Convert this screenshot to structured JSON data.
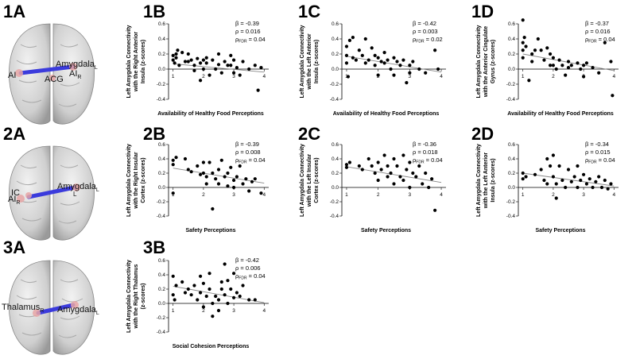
{
  "panels": {
    "p1A": "1A",
    "p1B": "1B",
    "p1C": "1C",
    "p1D": "1D",
    "p2A": "2A",
    "p2B": "2B",
    "p2C": "2C",
    "p2D": "2D",
    "p3A": "3A",
    "p3B": "3B"
  },
  "brains": {
    "b1": {
      "ai_left": "AI",
      "acg": "ACG",
      "amygdala": "Amygdala",
      "amygdala_sub": "L",
      "ai_right": "AI",
      "ai_right_sub": "R"
    },
    "b2": {
      "ic": "IC",
      "ai": "AI",
      "r_sub": "R",
      "amygdala": "Amygdala",
      "amygdala_sub": "L",
      "l_sub": "L"
    },
    "b3": {
      "thalamus": "Thalamus",
      "r_sub": "R",
      "amygdala": "Amygdala",
      "amygdala_sub": "L"
    }
  },
  "colors": {
    "regression_line": "#888888",
    "connection": "#3b3bdc",
    "dots": "#000000"
  },
  "chart_data": [
    {
      "id": "1B",
      "type": "scatter",
      "ylabel_lines": [
        "Left Amygdala Connectivity",
        "with the Right Anterior",
        "Insula (z-scores)"
      ],
      "xlabel": "Availability of Healthy Food Perceptions",
      "stats": {
        "beta": "β = -0.39",
        "rho": "ρ = 0.016",
        "pfdr_value": "= 0.04"
      },
      "yticks": [
        "0.6",
        "0.4",
        "0.2",
        "0.0",
        "-0.2",
        "-0.4"
      ],
      "xticks": [
        "1",
        "2",
        "3",
        "4"
      ],
      "ylim": [
        -0.4,
        0.6
      ],
      "xlim": [
        1,
        4
      ],
      "zero_y": 0.0,
      "line": [
        [
          1,
          0.07
        ],
        [
          4,
          -0.04
        ]
      ],
      "points": [
        [
          1,
          0.18
        ],
        [
          1,
          0.12
        ],
        [
          1.05,
          0.08
        ],
        [
          1.1,
          0.2
        ],
        [
          1.1,
          0.15
        ],
        [
          1.15,
          0.25
        ],
        [
          1.2,
          0.05
        ],
        [
          1.3,
          0.22
        ],
        [
          1.4,
          0.1
        ],
        [
          1.5,
          0.2
        ],
        [
          1.5,
          0.1
        ],
        [
          1.6,
          0.12
        ],
        [
          1.7,
          0.05
        ],
        [
          1.7,
          -0.02
        ],
        [
          1.8,
          0.14
        ],
        [
          1.9,
          0.08
        ],
        [
          1.9,
          -0.15
        ],
        [
          2.0,
          0.0
        ],
        [
          2.0,
          0.12
        ],
        [
          2.1,
          0.15
        ],
        [
          2.1,
          0.08
        ],
        [
          2.2,
          -0.08
        ],
        [
          2.3,
          0.12
        ],
        [
          2.4,
          0.0
        ],
        [
          2.5,
          0.2
        ],
        [
          2.5,
          0.06
        ],
        [
          2.6,
          -0.05
        ],
        [
          2.7,
          0.1
        ],
        [
          2.8,
          0.05
        ],
        [
          2.9,
          0.18
        ],
        [
          2.9,
          0.05
        ],
        [
          3.0,
          -0.05
        ],
        [
          3.0,
          0.12
        ],
        [
          3.1,
          0.02
        ],
        [
          3.2,
          -0.08
        ],
        [
          3.3,
          0.1
        ],
        [
          3.5,
          0.0
        ],
        [
          3.7,
          0.05
        ],
        [
          3.8,
          -0.28
        ],
        [
          3.9,
          0.02
        ]
      ]
    },
    {
      "id": "1C",
      "type": "scatter",
      "ylabel_lines": [
        "Left Amygdala Connectivity",
        "with the Left Anterior",
        "Insula (z-scores)"
      ],
      "xlabel": "Availability of Healthy Food Perceptions",
      "stats": {
        "beta": "β = -0.42",
        "rho": "ρ = 0.003",
        "pfdr_value": "= 0.02"
      },
      "yticks": [
        "0.6",
        "0.4",
        "0.2",
        "0.0",
        "-0.2",
        "-0.4"
      ],
      "xticks": [
        "1",
        "2",
        "3",
        "4"
      ],
      "ylim": [
        -0.4,
        0.6
      ],
      "xlim": [
        1,
        4
      ],
      "zero_y": 0.0,
      "line": [
        [
          1,
          0.17
        ],
        [
          4,
          -0.04
        ]
      ],
      "points": [
        [
          1,
          0.3
        ],
        [
          1,
          0.18
        ],
        [
          1,
          0.08
        ],
        [
          1.05,
          -0.1
        ],
        [
          1.1,
          0.38
        ],
        [
          1.2,
          0.42
        ],
        [
          1.2,
          0.15
        ],
        [
          1.3,
          0.12
        ],
        [
          1.4,
          0.25
        ],
        [
          1.5,
          0.18
        ],
        [
          1.6,
          0.08
        ],
        [
          1.6,
          0.4
        ],
        [
          1.7,
          0.12
        ],
        [
          1.8,
          0.28
        ],
        [
          1.9,
          0.18
        ],
        [
          1.9,
          0.05
        ],
        [
          2.0,
          0.15
        ],
        [
          2.0,
          -0.08
        ],
        [
          2.1,
          0.1
        ],
        [
          2.2,
          0.22
        ],
        [
          2.2,
          0.08
        ],
        [
          2.3,
          0.12
        ],
        [
          2.4,
          0.0
        ],
        [
          2.5,
          0.15
        ],
        [
          2.5,
          -0.08
        ],
        [
          2.6,
          0.1
        ],
        [
          2.7,
          0.05
        ],
        [
          2.8,
          0.12
        ],
        [
          2.9,
          -0.18
        ],
        [
          3.0,
          0.05
        ],
        [
          3.0,
          -0.05
        ],
        [
          3.1,
          0.1
        ],
        [
          3.3,
          0.0
        ],
        [
          3.5,
          -0.05
        ],
        [
          3.8,
          0.25
        ],
        [
          3.9,
          0.0
        ]
      ]
    },
    {
      "id": "1D",
      "type": "scatter",
      "ylabel_lines": [
        "Left Amygdala Connectivity",
        "with the Anterior Cingulate",
        "Gyrus (z-scores)"
      ],
      "xlabel": "Availability of Healthy Food Perceptions",
      "stats": {
        "beta": "β = -0.37",
        "rho": "ρ = 0.016",
        "pfdr_value": "= 0.04"
      },
      "yticks": [
        "0.6",
        "0.4",
        "0.2",
        "0.0",
        "-0.2",
        "-0.4"
      ],
      "xticks": [
        "1",
        "2",
        "3",
        "4"
      ],
      "ylim": [
        -0.4,
        0.6
      ],
      "xlim": [
        1,
        4
      ],
      "zero_y": 0.0,
      "line": [
        [
          1,
          0.2
        ],
        [
          4,
          -0.02
        ]
      ],
      "points": [
        [
          1,
          0.65
        ],
        [
          1,
          0.35
        ],
        [
          1,
          0.25
        ],
        [
          1,
          0.15
        ],
        [
          1.05,
          0.42
        ],
        [
          1.1,
          0.3
        ],
        [
          1.2,
          -0.15
        ],
        [
          1.3,
          0.2
        ],
        [
          1.3,
          0.1
        ],
        [
          1.4,
          0.25
        ],
        [
          1.5,
          0.4
        ],
        [
          1.6,
          0.25
        ],
        [
          1.7,
          0.12
        ],
        [
          1.8,
          0.28
        ],
        [
          1.9,
          0.2
        ],
        [
          1.9,
          0.05
        ],
        [
          2.0,
          0.15
        ],
        [
          2.0,
          0.05
        ],
        [
          2.1,
          0.0
        ],
        [
          2.2,
          0.12
        ],
        [
          2.3,
          0.05
        ],
        [
          2.4,
          -0.08
        ],
        [
          2.5,
          0.1
        ],
        [
          2.5,
          0.02
        ],
        [
          2.6,
          0.05
        ],
        [
          2.8,
          0.08
        ],
        [
          2.9,
          0.0
        ],
        [
          3.0,
          0.05
        ],
        [
          3.0,
          -0.1
        ],
        [
          3.1,
          0.08
        ],
        [
          3.3,
          0.02
        ],
        [
          3.5,
          -0.05
        ],
        [
          3.7,
          0.35
        ],
        [
          3.9,
          0.1
        ],
        [
          3.95,
          -0.35
        ]
      ]
    },
    {
      "id": "2B",
      "type": "scatter",
      "ylabel_lines": [
        "Left Amygdala Connectivity",
        "with the Right Insular",
        "Cortex (z-scores)"
      ],
      "xlabel": "Safety Perceptions",
      "stats": {
        "beta": "β = -0.39",
        "rho": "ρ = 0.008",
        "pfdr_value": "= 0.04"
      },
      "yticks": [
        "0.6",
        "0.4",
        "0.2",
        "0.0",
        "-0.2",
        "-0.4"
      ],
      "xticks": [
        "1",
        "2",
        "3",
        "4"
      ],
      "ylim": [
        -0.4,
        0.6
      ],
      "xlim": [
        1,
        4
      ],
      "zero_y": 0.0,
      "line": [
        [
          1,
          0.27
        ],
        [
          4,
          0.06
        ]
      ],
      "points": [
        [
          1,
          0.38
        ],
        [
          1,
          0.32
        ],
        [
          1,
          -0.08
        ],
        [
          1.1,
          0.42
        ],
        [
          1.4,
          0.4
        ],
        [
          1.5,
          0.25
        ],
        [
          1.6,
          0.22
        ],
        [
          1.8,
          0.3
        ],
        [
          1.9,
          0.18
        ],
        [
          2.0,
          0.35
        ],
        [
          2.0,
          0.2
        ],
        [
          2.1,
          0.15
        ],
        [
          2.1,
          0.05
        ],
        [
          2.2,
          0.35
        ],
        [
          2.3,
          0.2
        ],
        [
          2.3,
          -0.3
        ],
        [
          2.4,
          0.12
        ],
        [
          2.5,
          0.25
        ],
        [
          2.5,
          0.05
        ],
        [
          2.6,
          0.38
        ],
        [
          2.7,
          0.15
        ],
        [
          2.8,
          0.2
        ],
        [
          2.8,
          0.02
        ],
        [
          2.9,
          0.28
        ],
        [
          3.0,
          0.1
        ],
        [
          3.0,
          0.0
        ],
        [
          3.1,
          0.15
        ],
        [
          3.2,
          0.3
        ],
        [
          3.3,
          0.05
        ],
        [
          3.4,
          0.12
        ],
        [
          3.5,
          -0.05
        ],
        [
          3.6,
          0.08
        ],
        [
          3.7,
          0.12
        ],
        [
          3.9,
          -0.08
        ]
      ]
    },
    {
      "id": "2C",
      "type": "scatter",
      "ylabel_lines": [
        "Left Amygdala Connectivity",
        "with the Left Insular",
        "Cortex (z-scores)"
      ],
      "xlabel": "Safety Perceptions",
      "stats": {
        "beta": "β = -0.36",
        "rho": "ρ = 0.018",
        "pfdr_value": "= 0.04"
      },
      "yticks": [
        "0.6",
        "0.4",
        "0.2",
        "0.0",
        "-0.2",
        "-0.4"
      ],
      "xticks": [
        "1",
        "2",
        "3",
        "4"
      ],
      "ylim": [
        -0.4,
        0.6
      ],
      "xlim": [
        1,
        4
      ],
      "zero_y": 0.0,
      "line": [
        [
          1,
          0.29
        ],
        [
          4,
          0.07
        ]
      ],
      "points": [
        [
          1,
          0.32
        ],
        [
          1,
          0.28
        ],
        [
          1.1,
          0.35
        ],
        [
          1.4,
          0.3
        ],
        [
          1.5,
          0.25
        ],
        [
          1.7,
          0.4
        ],
        [
          1.8,
          0.3
        ],
        [
          1.9,
          0.2
        ],
        [
          2.0,
          0.35
        ],
        [
          2.0,
          0.1
        ],
        [
          2.1,
          0.25
        ],
        [
          2.2,
          0.45
        ],
        [
          2.3,
          0.3
        ],
        [
          2.3,
          0.15
        ],
        [
          2.4,
          0.2
        ],
        [
          2.5,
          0.4
        ],
        [
          2.5,
          0.05
        ],
        [
          2.6,
          0.3
        ],
        [
          2.7,
          0.15
        ],
        [
          2.8,
          0.45
        ],
        [
          2.8,
          0.1
        ],
        [
          2.9,
          0.25
        ],
        [
          3.0,
          0.35
        ],
        [
          3.0,
          0.0
        ],
        [
          3.1,
          0.2
        ],
        [
          3.2,
          0.15
        ],
        [
          3.3,
          0.3
        ],
        [
          3.4,
          0.05
        ],
        [
          3.5,
          0.2
        ],
        [
          3.6,
          0.0
        ],
        [
          3.7,
          0.12
        ],
        [
          3.8,
          -0.32
        ]
      ]
    },
    {
      "id": "2D",
      "type": "scatter",
      "ylabel_lines": [
        "Left Amygdala Connectivity",
        "with the Left Anterior",
        "Insula (z-scores)"
      ],
      "xlabel": "Safety Perceptions",
      "stats": {
        "beta": "β = -0.34",
        "rho": "ρ = 0.015",
        "pfdr_value": "= 0.04"
      },
      "yticks": [
        "0.6",
        "0.4",
        "0.2",
        "0.0",
        "-0.2",
        "-0.4"
      ],
      "xticks": [
        "1",
        "2",
        "3",
        "4"
      ],
      "ylim": [
        -0.4,
        0.6
      ],
      "xlim": [
        1,
        4
      ],
      "zero_y": 0.0,
      "line": [
        [
          1,
          0.2
        ],
        [
          4,
          0.02
        ]
      ],
      "points": [
        [
          1,
          0.2
        ],
        [
          1,
          0.12
        ],
        [
          1.1,
          0.15
        ],
        [
          1.4,
          0.18
        ],
        [
          1.6,
          0.25
        ],
        [
          1.7,
          0.1
        ],
        [
          1.8,
          0.4
        ],
        [
          1.8,
          0.05
        ],
        [
          1.9,
          0.3
        ],
        [
          2.0,
          0.45
        ],
        [
          2.0,
          0.15
        ],
        [
          2.1,
          -0.15
        ],
        [
          2.1,
          0.05
        ],
        [
          2.2,
          0.3
        ],
        [
          2.3,
          0.1
        ],
        [
          2.4,
          0.0
        ],
        [
          2.5,
          0.25
        ],
        [
          2.6,
          0.08
        ],
        [
          2.7,
          0.15
        ],
        [
          2.8,
          0.3
        ],
        [
          2.8,
          0.0
        ],
        [
          2.9,
          0.1
        ],
        [
          3.0,
          0.18
        ],
        [
          3.1,
          0.05
        ],
        [
          3.2,
          0.12
        ],
        [
          3.3,
          0.0
        ],
        [
          3.4,
          0.08
        ],
        [
          3.5,
          0.15
        ],
        [
          3.6,
          0.0
        ],
        [
          3.7,
          0.1
        ],
        [
          3.8,
          -0.02
        ],
        [
          3.9,
          0.05
        ]
      ]
    },
    {
      "id": "3B",
      "type": "scatter",
      "ylabel_lines": [
        "Left Amygdala Connectivity",
        "with the Right Thalamus",
        "(z-scores)"
      ],
      "xlabel": "Social  Cohesion Perceptions",
      "stats": {
        "beta": "β = -0.42",
        "rho": "ρ = 0.006",
        "pfdr_value": "= 0.04"
      },
      "yticks": [
        "0.6",
        "0.4",
        "0.2",
        "0.0",
        "-0.2",
        "-0.4"
      ],
      "xticks": [
        "1",
        "2",
        "3",
        "4"
      ],
      "ylim": [
        -0.4,
        0.6
      ],
      "xlim": [
        1,
        4
      ],
      "zero_y": 0.0,
      "line": [
        [
          1,
          0.24
        ],
        [
          4,
          0.01
        ]
      ],
      "points": [
        [
          1,
          0.38
        ],
        [
          1,
          0.12
        ],
        [
          1.05,
          0.05
        ],
        [
          1.1,
          0.25
        ],
        [
          1.3,
          0.3
        ],
        [
          1.4,
          0.15
        ],
        [
          1.5,
          0.2
        ],
        [
          1.6,
          0.12
        ],
        [
          1.7,
          0.25
        ],
        [
          1.8,
          0.05
        ],
        [
          1.9,
          0.38
        ],
        [
          1.9,
          0.15
        ],
        [
          2.0,
          0.28
        ],
        [
          2.0,
          -0.05
        ],
        [
          2.1,
          0.1
        ],
        [
          2.2,
          0.42
        ],
        [
          2.2,
          0.2
        ],
        [
          2.3,
          0.0
        ],
        [
          2.3,
          -0.18
        ],
        [
          2.4,
          0.1
        ],
        [
          2.5,
          0.05
        ],
        [
          2.5,
          -0.1
        ],
        [
          2.6,
          0.2
        ],
        [
          2.6,
          0.3
        ],
        [
          2.7,
          0.55
        ],
        [
          2.7,
          0.12
        ],
        [
          2.8,
          0.0
        ],
        [
          2.8,
          0.32
        ],
        [
          2.9,
          0.2
        ],
        [
          3.0,
          0.08
        ],
        [
          3.0,
          0.42
        ],
        [
          3.1,
          0.15
        ],
        [
          3.2,
          0.1
        ],
        [
          3.3,
          0.25
        ],
        [
          3.5,
          0.05
        ],
        [
          3.7,
          0.05
        ]
      ]
    }
  ]
}
